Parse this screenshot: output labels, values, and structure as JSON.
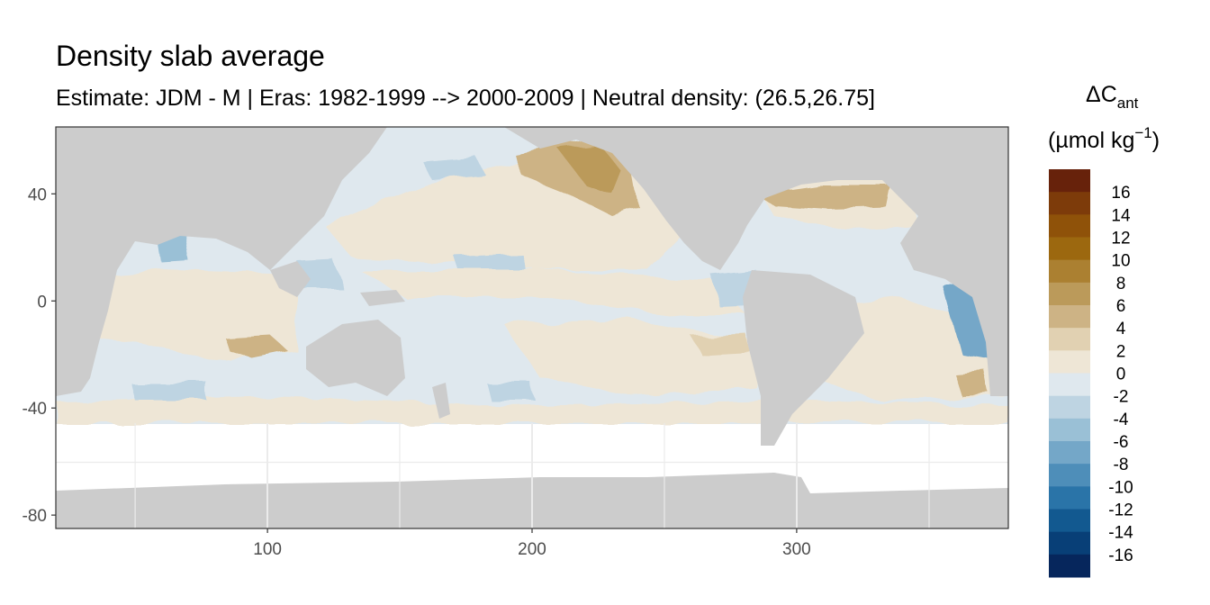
{
  "chart_data": {
    "type": "heatmap",
    "title": "Density slab average",
    "subtitle": "Estimate: JDM - M | Eras: 1982-1999 --> 2000-2009 | Neutral density: (26.5,26.75]",
    "xlabel": "",
    "ylabel": "",
    "xlim": [
      20,
      380
    ],
    "ylim": [
      -85,
      65
    ],
    "x_ticks": [
      100,
      200,
      300
    ],
    "y_ticks": [
      40,
      0,
      -40,
      -80
    ],
    "grid": true,
    "legend": {
      "placement": "right",
      "title_main": "ΔC",
      "title_sub": "ant",
      "unit_main": "(µmol kg",
      "unit_sup": "−1",
      "unit_close": ")",
      "labels": [
        "16",
        "14",
        "12",
        "10",
        "8",
        "6",
        "4",
        "2",
        "0",
        "-2",
        "-4",
        "-6",
        "-8",
        "-10",
        "-12",
        "-14",
        "-16"
      ],
      "colors": [
        "#67220b",
        "#7d3b0a",
        "#8f5209",
        "#9c680f",
        "#ab8031",
        "#bb9a5a",
        "#cdb385",
        "#e1d1b2",
        "#eee6d6",
        "#dfe8ee",
        "#bed4e2",
        "#9ac0d6",
        "#74a7c8",
        "#4e8eb9",
        "#2a74a8",
        "#125990",
        "#083f77",
        "#06265c"
      ]
    },
    "land_color": "#cccccc",
    "no_data_color": "#ffffff"
  }
}
